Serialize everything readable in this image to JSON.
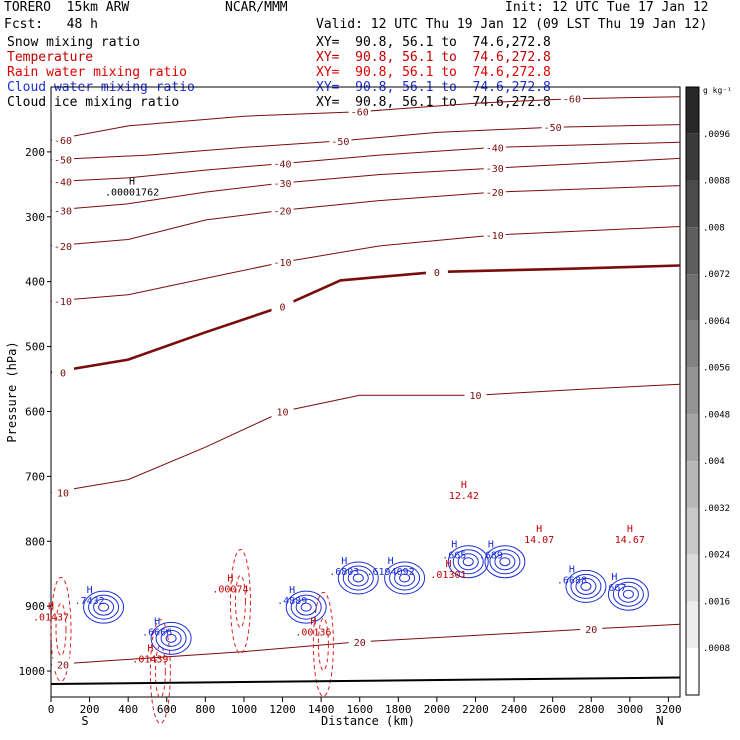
{
  "header": {
    "model": "TORERO  15km ARW",
    "org": "NCAR/MMM",
    "init": "Init: 12 UTC Tue 17 Jan 12",
    "fcst": "Fcst:   48 h",
    "valid": "Valid: 12 UTC Thu 19 Jan 12 (09 LST Thu 19 Jan 12)"
  },
  "fields": [
    {
      "name": "Snow mixing ratio",
      "xy": "XY=  90.8, 56.1 to  74.6,272.8",
      "color": "#000000"
    },
    {
      "name": "Temperature",
      "xy": "XY=  90.8, 56.1 to  74.6,272.8",
      "color": "#c00000"
    },
    {
      "name": "Rain water mixing ratio",
      "xy": "XY=  90.8, 56.1 to  74.6,272.8",
      "color": "#e00000"
    },
    {
      "name": "Cloud water mixing ratio",
      "xy": "XY=  90.8, 56.1 to  74.6,272.8",
      "color": "#1c2fd6"
    },
    {
      "name": "Cloud ice mixing ratio",
      "xy": "XY=  90.8, 56.1 to  74.6,272.8",
      "color": "#000000"
    }
  ],
  "chart_data": {
    "type": "contour",
    "xlabel": "Distance (km)",
    "ylabel": "Pressure (hPa)",
    "xlim": [
      0,
      3260
    ],
    "ylim_hpa": [
      1040,
      100
    ],
    "x_ticks": [
      0,
      200,
      400,
      600,
      800,
      1000,
      1200,
      1400,
      1600,
      1800,
      2000,
      2200,
      2400,
      2600,
      2800,
      3000,
      3200
    ],
    "y_ticks": [
      200,
      300,
      400,
      500,
      600,
      700,
      800,
      900,
      1000
    ],
    "x_endpoints": {
      "left": "S",
      "right": "N"
    },
    "colorbar": {
      "unit": "g kg⁻¹",
      "labels": [
        ".0096",
        ".0088",
        ".008",
        ".0072",
        ".0064",
        ".0056",
        ".0048",
        ".004",
        ".0032",
        ".0024",
        ".0016",
        ".0008"
      ]
    },
    "temperature_contours": [
      {
        "value": -60,
        "points": [
          [
            0,
            182
          ],
          [
            400,
            160
          ],
          [
            1000,
            145
          ],
          [
            1600,
            138
          ],
          [
            2200,
            125
          ],
          [
            2700,
            118
          ],
          [
            3260,
            115
          ]
        ]
      },
      {
        "value": -50,
        "points": [
          [
            0,
            212
          ],
          [
            500,
            205
          ],
          [
            1000,
            193
          ],
          [
            1500,
            183
          ],
          [
            2000,
            170
          ],
          [
            2600,
            162
          ],
          [
            3260,
            158
          ]
        ]
      },
      {
        "value": -40,
        "points": [
          [
            0,
            246
          ],
          [
            400,
            240
          ],
          [
            800,
            228
          ],
          [
            1200,
            218
          ],
          [
            1700,
            205
          ],
          [
            2300,
            193
          ],
          [
            3260,
            185
          ]
        ]
      },
      {
        "value": -30,
        "points": [
          [
            0,
            290
          ],
          [
            400,
            280
          ],
          [
            800,
            262
          ],
          [
            1200,
            248
          ],
          [
            1700,
            235
          ],
          [
            2300,
            225
          ],
          [
            3260,
            210
          ]
        ]
      },
      {
        "value": -20,
        "points": [
          [
            0,
            345
          ],
          [
            400,
            335
          ],
          [
            800,
            305
          ],
          [
            1200,
            290
          ],
          [
            1700,
            275
          ],
          [
            2300,
            262
          ],
          [
            3260,
            252
          ]
        ]
      },
      {
        "value": -10,
        "points": [
          [
            0,
            430
          ],
          [
            400,
            420
          ],
          [
            800,
            395
          ],
          [
            1200,
            370
          ],
          [
            1700,
            345
          ],
          [
            2300,
            328
          ],
          [
            3260,
            315
          ]
        ]
      },
      {
        "value": 0,
        "points": [
          [
            0,
            540
          ],
          [
            400,
            520
          ],
          [
            800,
            478
          ],
          [
            1200,
            438
          ],
          [
            1500,
            398
          ],
          [
            2000,
            385
          ],
          [
            2700,
            380
          ],
          [
            3260,
            375
          ]
        ]
      },
      {
        "value": 10,
        "points": [
          [
            0,
            725
          ],
          [
            400,
            705
          ],
          [
            800,
            655
          ],
          [
            1200,
            600
          ],
          [
            1600,
            575
          ],
          [
            2200,
            575
          ],
          [
            2800,
            565
          ],
          [
            3260,
            558
          ]
        ]
      },
      {
        "value": 20,
        "points": [
          [
            0,
            990
          ],
          [
            500,
            980
          ],
          [
            1000,
            970
          ],
          [
            1600,
            955
          ],
          [
            2200,
            945
          ],
          [
            2800,
            935
          ],
          [
            3260,
            928
          ]
        ]
      }
    ],
    "cloud_water_maxima": [
      {
        "x": 200,
        "p": 880,
        "value": ".7432"
      },
      {
        "x": 550,
        "p": 928,
        "value": ".6666"
      },
      {
        "x": 1250,
        "p": 880,
        "value": ".4889"
      },
      {
        "x": 1520,
        "p": 835,
        "value": ".6803"
      },
      {
        "x": 1760,
        "p": 835,
        "value": ".6194092"
      },
      {
        "x": 2090,
        "p": 810,
        "value": ".665"
      },
      {
        "x": 2280,
        "p": 810,
        "value": ".689"
      },
      {
        "x": 2700,
        "p": 848,
        "value": ".6688"
      },
      {
        "x": 2920,
        "p": 860,
        "value": ".667"
      }
    ],
    "snow_maxima": [
      {
        "x": 420,
        "p": 250,
        "value": ".00001762"
      }
    ],
    "rain_maxima": [
      {
        "x": 0,
        "p": 905,
        "value": ".01437"
      },
      {
        "x": 515,
        "p": 970,
        "value": ".01439"
      },
      {
        "x": 930,
        "p": 862,
        "value": ".00074"
      },
      {
        "x": 1360,
        "p": 928,
        "value": ".00136"
      },
      {
        "x": 2060,
        "p": 840,
        "value": ".01301"
      },
      {
        "x": 2140,
        "p": 718,
        "value": "12.42"
      },
      {
        "x": 2530,
        "p": 786,
        "value": "14.07"
      },
      {
        "x": 3000,
        "p": 786,
        "value": "14.67"
      }
    ]
  }
}
